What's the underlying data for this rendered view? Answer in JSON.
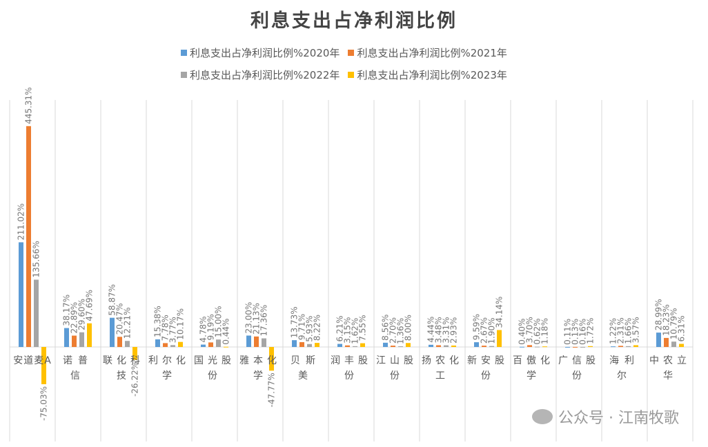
{
  "chart_data": {
    "type": "bar",
    "title": "利息支出占净利润比例",
    "xlabel": "",
    "ylabel": "",
    "grid": "vertical category separators",
    "legend_position": "top",
    "categories": [
      "安道麦A",
      "诺普信",
      "联化科技",
      "利尔化学",
      "国光股份",
      "雅本化学",
      "贝斯美",
      "润丰股份",
      "江山股份",
      "扬农化工",
      "新安股份",
      "百傲化学",
      "广信股份",
      "海利尔",
      "中农立华"
    ],
    "series": [
      {
        "name": "利息支出占净利润比例%2020年",
        "color": "#5b9bd5",
        "values": [
          211.02,
          38.17,
          58.87,
          15.38,
          4.78,
          23.0,
          13.73,
          6.21,
          8.56,
          4.44,
          9.59,
          0.4,
          0.11,
          1.22,
          28.99
        ]
      },
      {
        "name": "利息支出占净利润比例%2021年",
        "color": "#ed7d31",
        "values": [
          445.31,
          22.89,
          20.47,
          7.78,
          9.19,
          21.13,
          9.71,
          3.15,
          2.7,
          3.48,
          2.67,
          3.7,
          0.13,
          2.31,
          18.23
        ]
      },
      {
        "name": "利息支出占净利润比例%2022年",
        "color": "#a5a5a5",
        "values": [
          135.66,
          29.6,
          12.21,
          3.77,
          15.0,
          17.36,
          5.93,
          1.62,
          1.36,
          3.31,
          1.9,
          0.62,
          0.16,
          1.66,
          10.79
        ]
      },
      {
        "name": "利息支出占净利润比例%2023年",
        "color": "#ffc000",
        "values": [
          -75.03,
          47.69,
          -26.22,
          10.17,
          0.44,
          -47.77,
          8.22,
          7.55,
          8.0,
          2.93,
          34.14,
          1.18,
          1.72,
          3.57,
          6.31
        ]
      }
    ],
    "value_suffix": "%"
  },
  "watermark": "公众号 · 江南牧歌"
}
